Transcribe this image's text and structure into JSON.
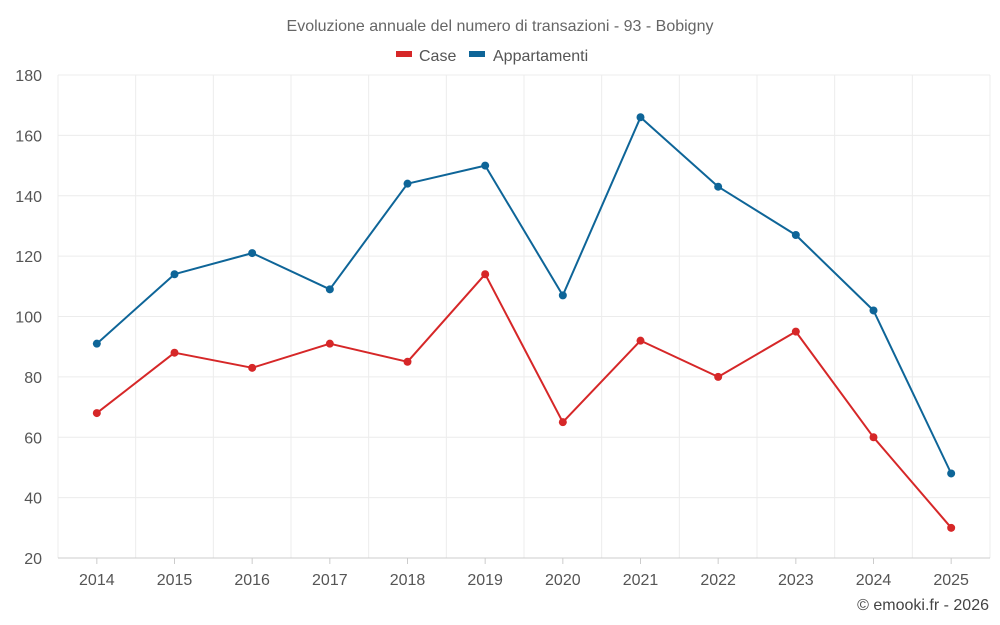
{
  "chart_data": {
    "type": "line",
    "title": "Evoluzione annuale del numero di transazioni - 93 - Bobigny",
    "categories": [
      "2014",
      "2015",
      "2016",
      "2017",
      "2018",
      "2019",
      "2020",
      "2021",
      "2022",
      "2023",
      "2024",
      "2025"
    ],
    "series": [
      {
        "name": "Case",
        "color": "#d62728",
        "values": [
          68,
          88,
          83,
          91,
          85,
          114,
          65,
          92,
          80,
          95,
          60,
          30
        ]
      },
      {
        "name": "Appartamenti",
        "color": "#0e6598",
        "values": [
          91,
          114,
          121,
          109,
          144,
          150,
          107,
          166,
          143,
          127,
          102,
          48
        ]
      }
    ],
    "ylim": [
      20,
      180
    ],
    "yticks": [
      20,
      40,
      60,
      80,
      100,
      120,
      140,
      160,
      180
    ],
    "xlabel": "",
    "ylabel": "",
    "grid": true,
    "legend": "top-center"
  },
  "credit": "© emooki.fr - 2026",
  "colors": {
    "grid": "#ececec",
    "axis": "#cccccc"
  }
}
